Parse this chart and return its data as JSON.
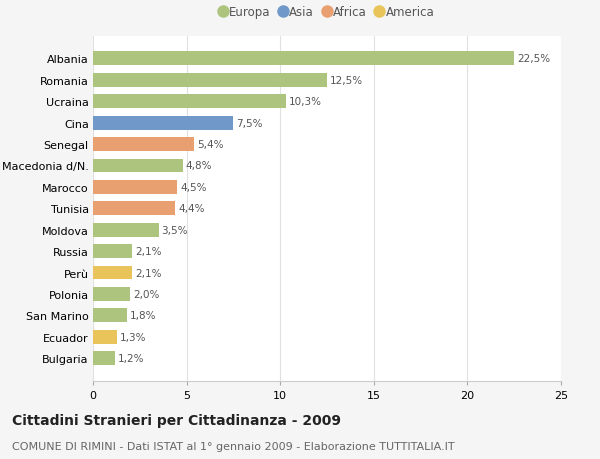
{
  "categories": [
    "Bulgaria",
    "Ecuador",
    "San Marino",
    "Polonia",
    "Perù",
    "Russia",
    "Moldova",
    "Tunisia",
    "Marocco",
    "Macedonia d/N.",
    "Senegal",
    "Cina",
    "Ucraina",
    "Romania",
    "Albania"
  ],
  "values": [
    1.2,
    1.3,
    1.8,
    2.0,
    2.1,
    2.1,
    3.5,
    4.4,
    4.5,
    4.8,
    5.4,
    7.5,
    10.3,
    12.5,
    22.5
  ],
  "labels": [
    "1,2%",
    "1,3%",
    "1,8%",
    "2,0%",
    "2,1%",
    "2,1%",
    "3,5%",
    "4,4%",
    "4,5%",
    "4,8%",
    "5,4%",
    "7,5%",
    "10,3%",
    "12,5%",
    "22,5%"
  ],
  "colors": [
    "#adc47e",
    "#e8c45a",
    "#adc47e",
    "#adc47e",
    "#e8c45a",
    "#adc47e",
    "#adc47e",
    "#e8a070",
    "#e8a070",
    "#adc47e",
    "#e8a070",
    "#7098c8",
    "#adc47e",
    "#adc47e",
    "#adc47e"
  ],
  "legend_labels": [
    "Europa",
    "Asia",
    "Africa",
    "America"
  ],
  "legend_colors": [
    "#adc47e",
    "#7098c8",
    "#e8a070",
    "#e8c45a"
  ],
  "title": "Cittadini Stranieri per Cittadinanza - 2009",
  "subtitle": "COMUNE DI RIMINI - Dati ISTAT al 1° gennaio 2009 - Elaborazione TUTTITALIA.IT",
  "xlim": [
    0,
    25
  ],
  "xticks": [
    0,
    5,
    10,
    15,
    20,
    25
  ],
  "bg_color": "#f5f5f5",
  "plot_bg_color": "#ffffff",
  "grid_color": "#e0e0e0",
  "title_fontsize": 10,
  "subtitle_fontsize": 8,
  "label_fontsize": 7.5,
  "tick_fontsize": 8,
  "legend_fontsize": 8.5
}
